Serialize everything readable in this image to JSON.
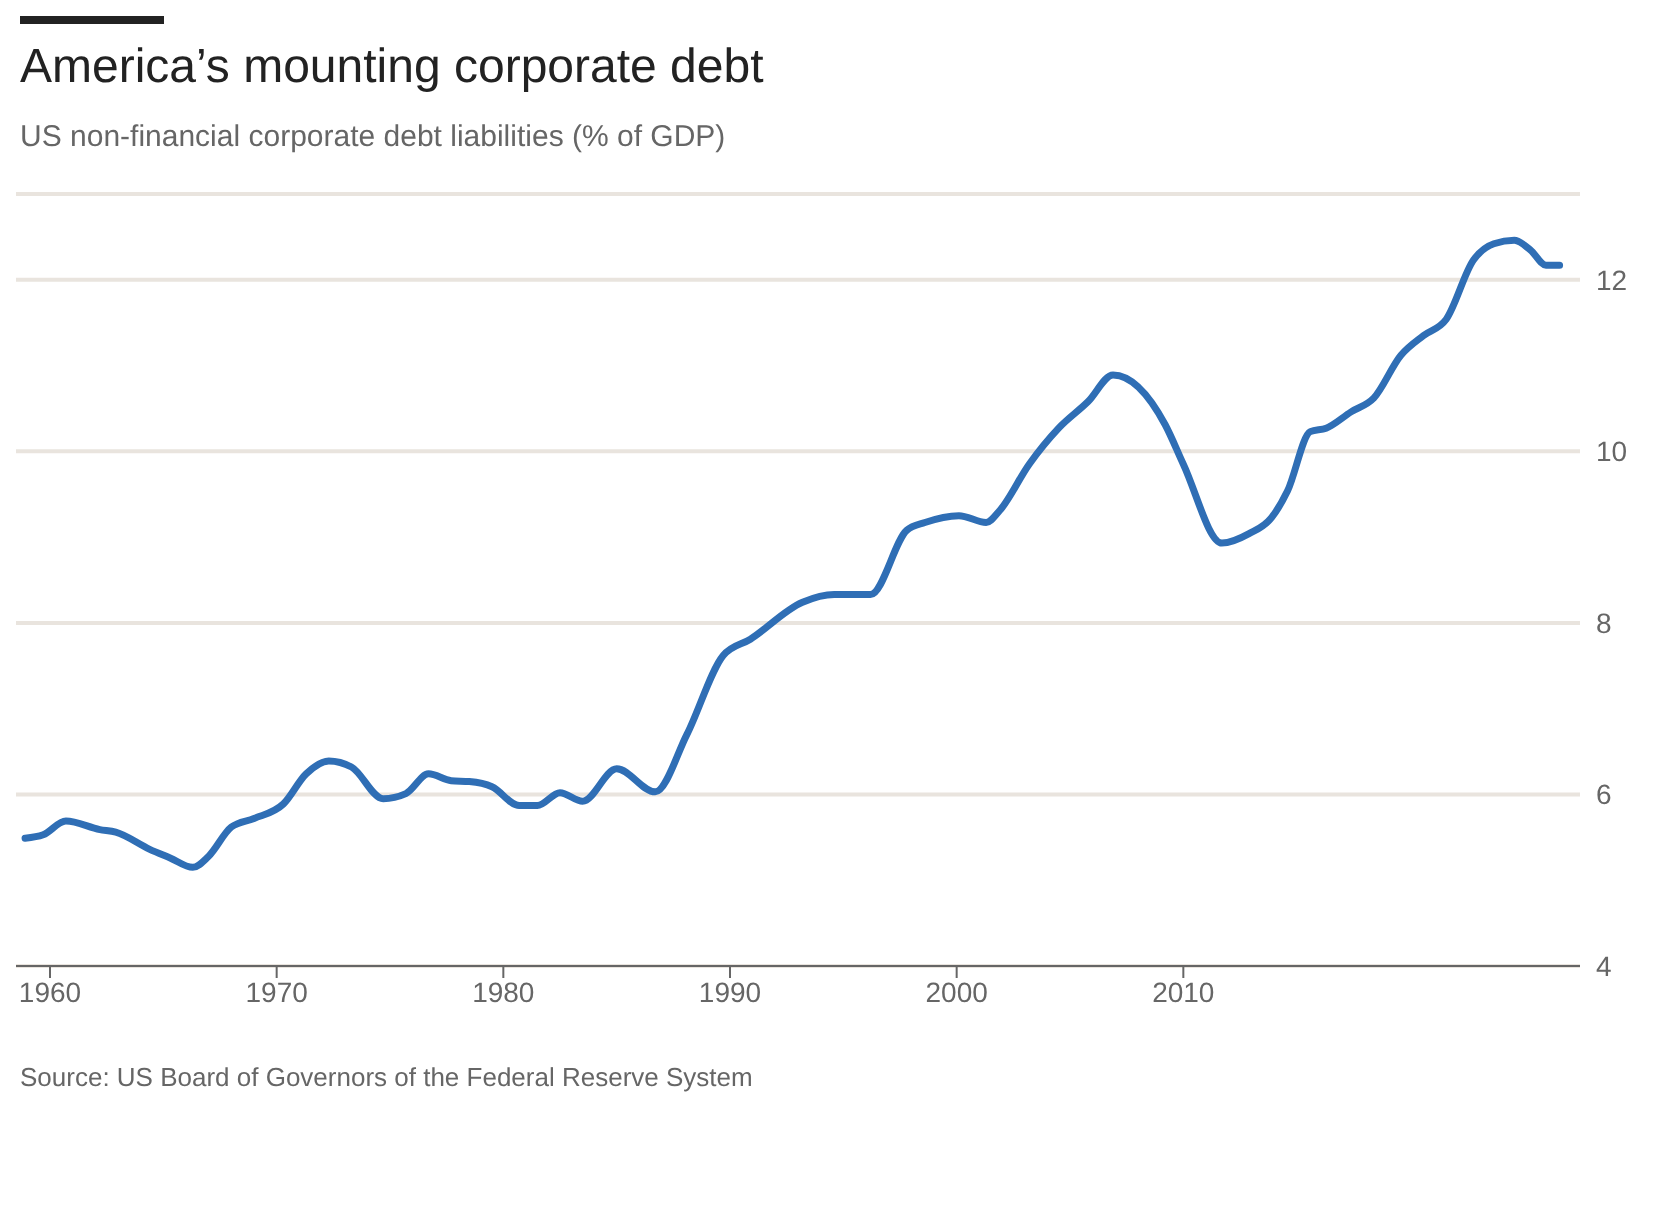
{
  "chart_data": {
    "type": "line",
    "title": "America’s mounting corporate debt",
    "subtitle": "US non-financial corporate debt liabilities (% of GDP)",
    "annotations": [
      "Source: US Board of Governors of the Federal Reserve System"
    ],
    "x": [
      1958.9,
      1959.7,
      1960.7,
      1962.2,
      1962.9,
      1964.4,
      1965.3,
      1966.3,
      1967.0,
      1968.0,
      1969.0,
      1970.3,
      1971.3,
      1972.3,
      1973.3,
      1974.7,
      1975.7,
      1976.7,
      1977.7,
      1978.5,
      1979.5,
      1980.7,
      1981.5,
      1982.5,
      1983.5,
      1985.0,
      1986.7,
      1988.1,
      1989.7,
      1990.9,
      1993.2,
      1994.6,
      1996.2,
      1997.8,
      1998.6,
      2000.1,
      2001.3,
      2001.9,
      2003.2,
      2004.5,
      2005.8,
      2006.9,
      2009.2,
      2010.0,
      2011.7,
      2012.9,
      2013.9,
      2014.6,
      2015.6,
      2016.3,
      2017.4,
      2018.4,
      2019.6,
      2020.6,
      2021.6,
      2022.8,
      2023.7,
      2024.6,
      2025.3,
      2026.0,
      2026.6
    ],
    "series": [
      {
        "color": "#2f6eb5",
        "values": [
          5.49,
          5.53,
          5.69,
          5.59,
          5.56,
          5.36,
          5.26,
          5.15,
          5.28,
          5.62,
          5.72,
          5.89,
          6.24,
          6.39,
          6.32,
          5.95,
          6.01,
          6.24,
          6.16,
          6.15,
          6.09,
          5.87,
          5.87,
          6.02,
          5.92,
          6.3,
          6.03,
          6.7,
          7.62,
          7.81,
          8.24,
          8.33,
          8.33,
          9.08,
          9.17,
          9.25,
          9.17,
          9.31,
          9.85,
          10.27,
          10.58,
          10.89,
          10.31,
          9.85,
          8.93,
          9.04,
          9.23,
          9.54,
          10.23,
          10.27,
          10.46,
          10.62,
          11.12,
          11.35,
          11.54,
          12.23,
          12.42,
          12.46,
          12.35,
          12.17,
          12.17
        ]
      }
    ],
    "xlim": [
      1958.5,
      2027.5
    ],
    "xticks": [
      1960,
      1970,
      1980,
      1990,
      2000,
      2010
    ],
    "ylim": [
      4,
      13
    ],
    "yticks": [
      4,
      6,
      8,
      10,
      12
    ],
    "grid": "y",
    "marker": "none",
    "line_style": "solid"
  }
}
